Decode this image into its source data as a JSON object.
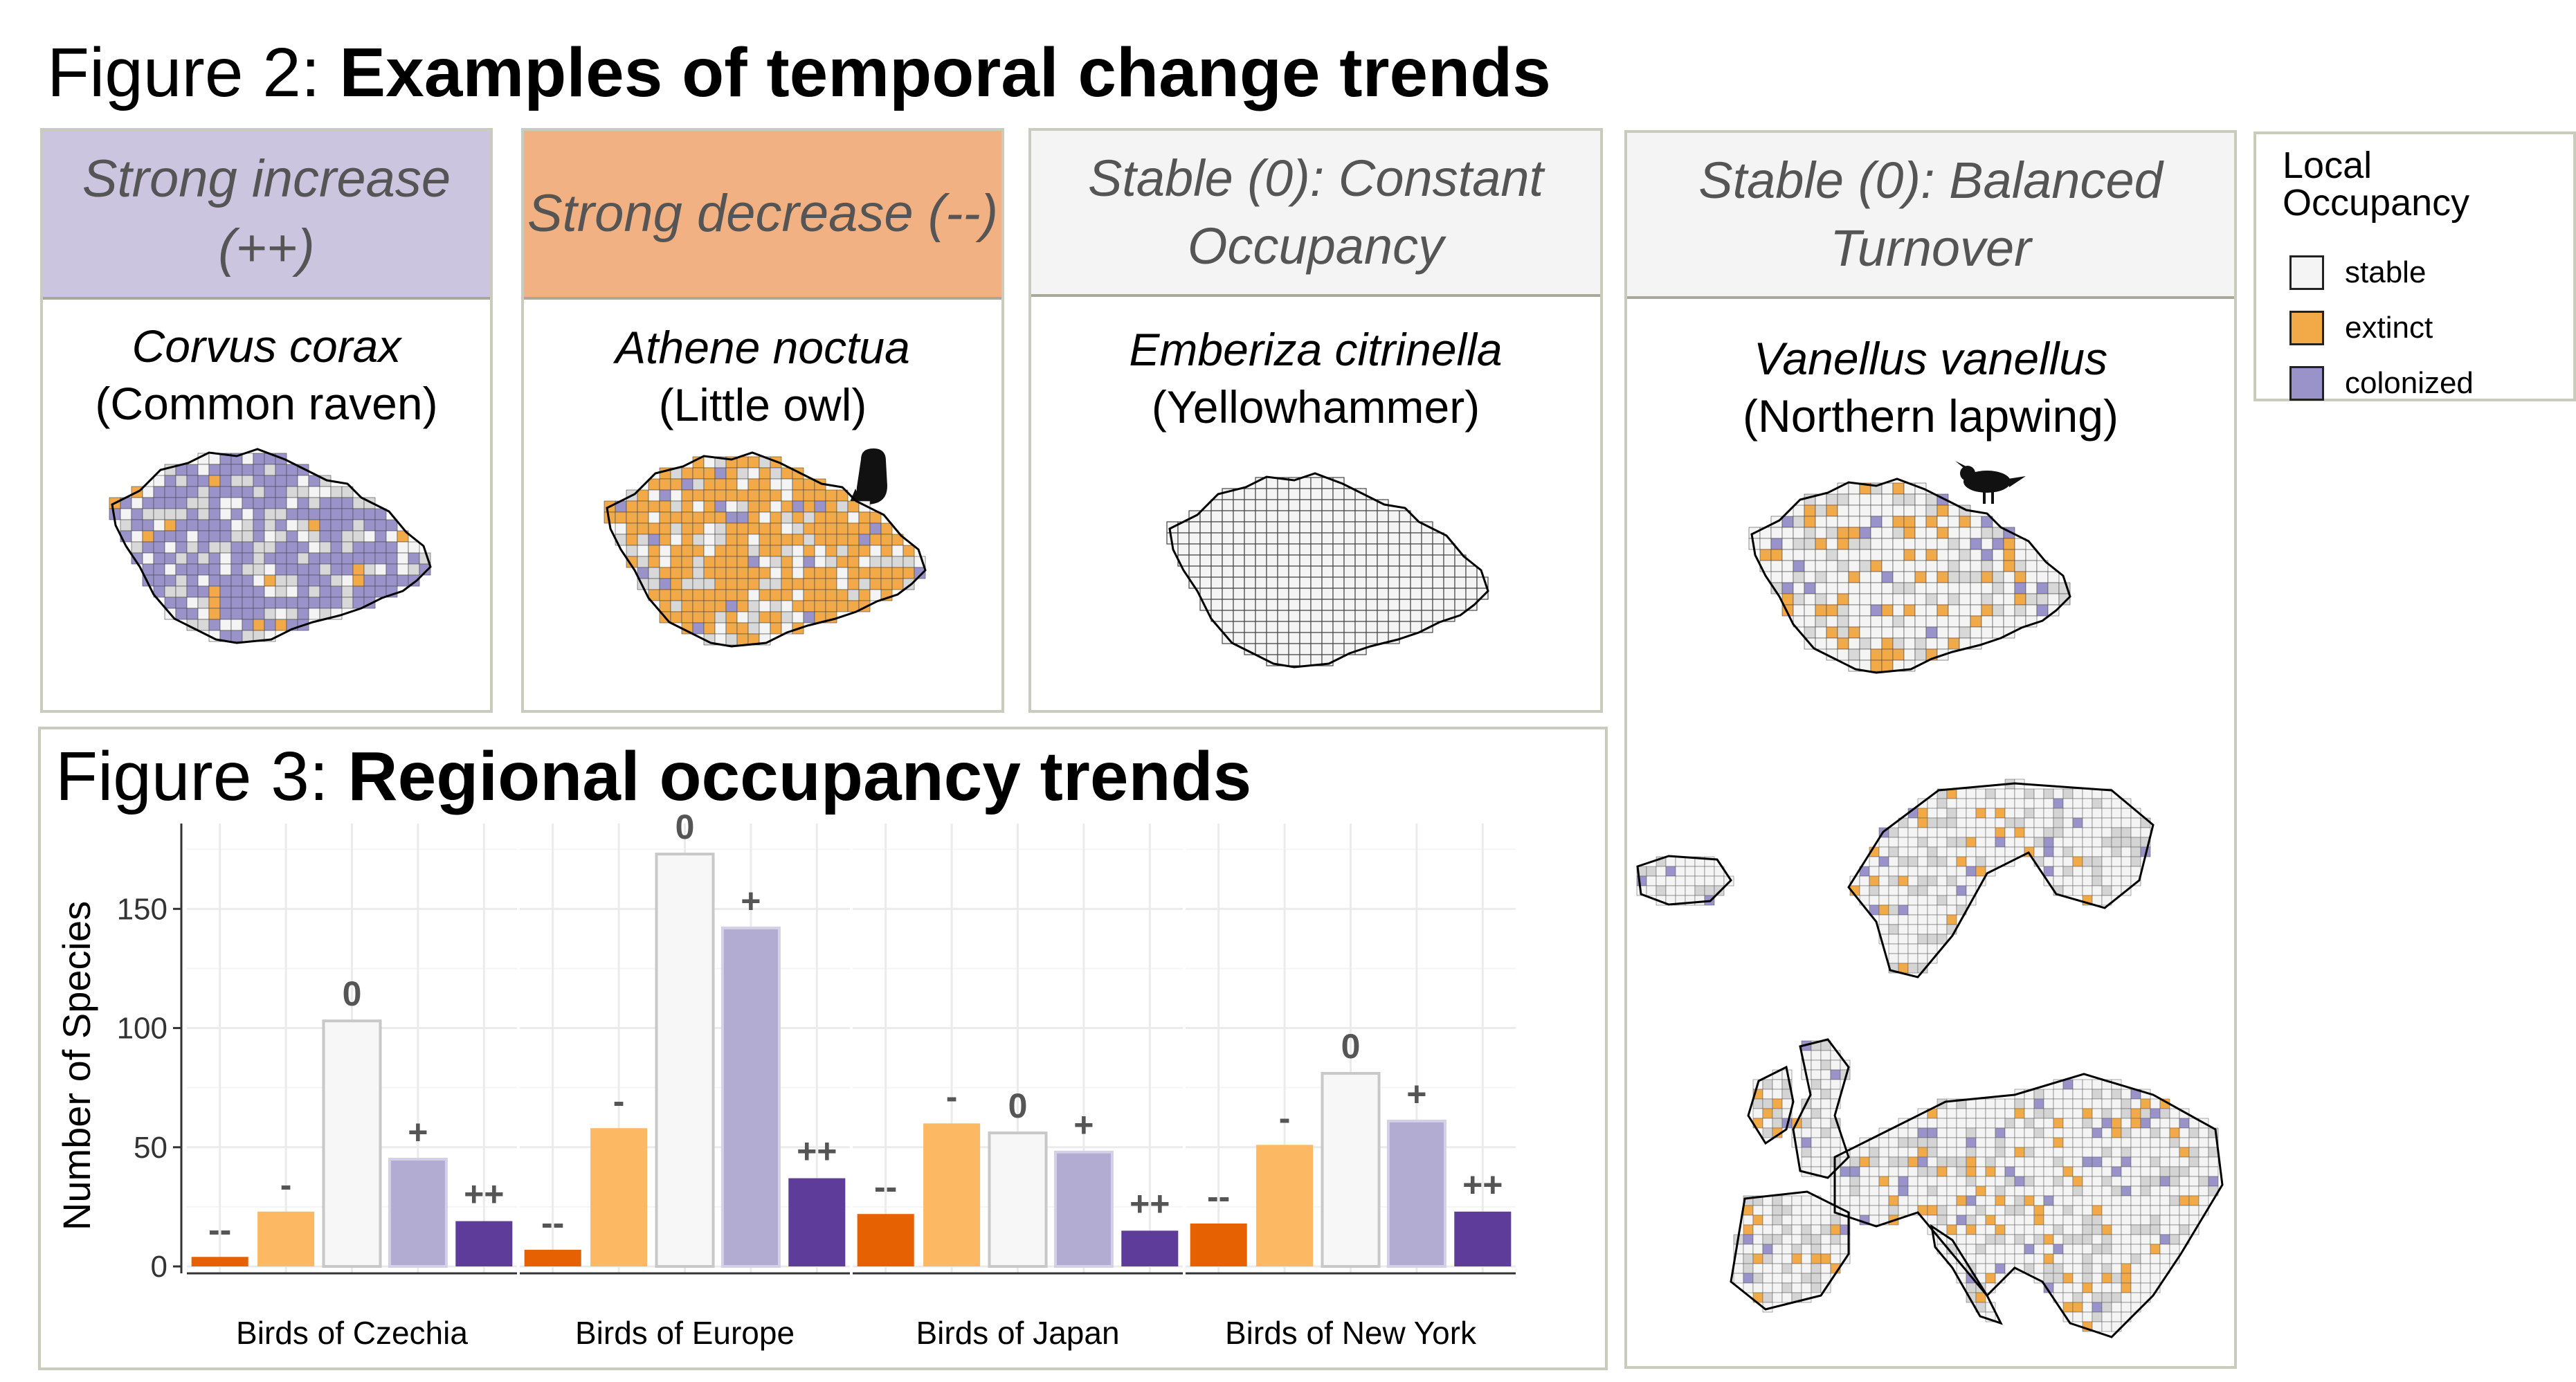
{
  "figure2": {
    "title_prefix": "Figure 2: ",
    "title_bold": "Examples of temporal change trends"
  },
  "figure3": {
    "title_prefix": "Figure 3: ",
    "title_bold": "Regional occupancy trends"
  },
  "panels": [
    {
      "header": "Strong increase (++)",
      "header_color": "#cbc5e0",
      "latin": "Corvus corax",
      "common": "(Common raven)",
      "map_style": "colonized"
    },
    {
      "header": "Strong decrease (--)",
      "header_color": "#f2b183",
      "latin": "Athene noctua",
      "common": "(Little owl)",
      "map_style": "extinct",
      "silhouette": "owl-icon"
    },
    {
      "header": "Stable (0): Constant Occupancy",
      "header_color": "#f4f4f4",
      "latin": "Emberiza citrinella",
      "common": "(Yellowhammer)",
      "map_style": "stable"
    },
    {
      "header": "Stable (0): Balanced Turnover",
      "header_color": "#f4f4f4",
      "latin": "Vanellus vanellus",
      "common": "(Northern lapwing)",
      "map_style": "mixed",
      "silhouette": "lapwing-icon"
    }
  ],
  "legend": {
    "title": "Local Occupancy",
    "items": [
      {
        "label": "stable",
        "color": "#f4f4f4"
      },
      {
        "label": "extinct",
        "color": "#f2a947"
      },
      {
        "label": "colonized",
        "color": "#9a93c9"
      }
    ]
  },
  "colors": {
    "strong_decrease": "#e66101",
    "decrease": "#fdb863",
    "stable": "#f7f7f7",
    "increase": "#b2abd2",
    "strong_increase": "#5e3c99",
    "map_extinct": "#f2a947",
    "map_colonized": "#9a93c9"
  },
  "chart_data": {
    "type": "bar",
    "ylabel": "Number of Species",
    "ylim": [
      0,
      180
    ],
    "yticks": [
      0,
      50,
      100,
      150
    ],
    "categories": [
      "--",
      "-",
      "0",
      "+",
      "++"
    ],
    "facets": [
      {
        "name": "Birds of Czechia",
        "values": [
          4,
          23,
          103,
          45,
          19
        ]
      },
      {
        "name": "Birds of Europe",
        "values": [
          7,
          58,
          173,
          142,
          37
        ]
      },
      {
        "name": "Birds of Japan",
        "values": [
          22,
          60,
          56,
          48,
          15
        ]
      },
      {
        "name": "Birds of New York",
        "values": [
          18,
          51,
          81,
          61,
          23
        ]
      }
    ]
  }
}
